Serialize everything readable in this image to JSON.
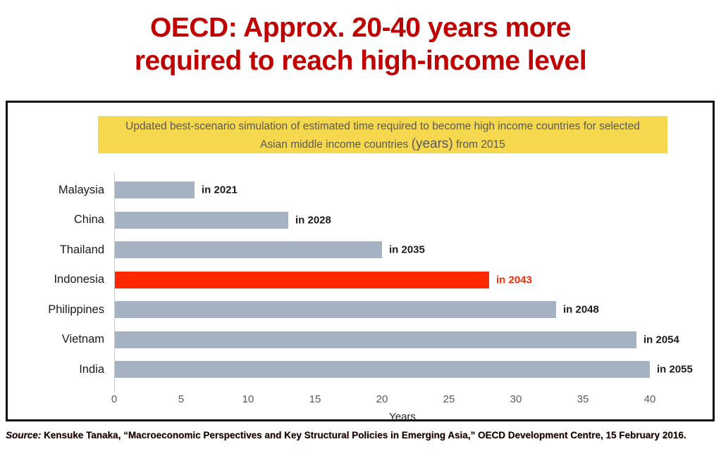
{
  "title": {
    "line1": "OECD: Approx. 20-40 years more",
    "line2": "required to reach high-income level"
  },
  "banner": {
    "line1": "Updated best-scenario simulation of estimated time required to become high income countries for selected",
    "line2_prefix": "Asian middle income countries ",
    "line2_highlight": "(years)",
    "line2_suffix": " from 2015"
  },
  "source": {
    "label": "Source:",
    "text": " Kensuke Tanaka, “Macroeconomic Perspectives and Key Structural Policies in Emerging Asia,” OECD Development Centre, 15 February 2016."
  },
  "colors": {
    "title_red": "#C00000",
    "bar_gray": "#A4B2C2",
    "bar_red": "#FE2900",
    "banner_yellow": "#F6D84F",
    "banner_text": "#595959"
  },
  "chart_data": {
    "type": "bar",
    "orientation": "horizontal",
    "title": "Updated best-scenario simulation of estimated time required to become high income countries for selected Asian middle income countries (years) from 2015",
    "categories": [
      "Malaysia",
      "China",
      "Thailand",
      "Indonesia",
      "Philippines",
      "Vietnam",
      "India"
    ],
    "values": [
      6,
      13,
      20,
      28,
      33,
      39,
      40
    ],
    "bar_labels": [
      "in 2021",
      "in 2028",
      "in 2035",
      "in 2043",
      "in 2048",
      "in 2054",
      "in 2055"
    ],
    "highlight_index": 3,
    "highlight_category": "Indonesia",
    "xlabel": "Years",
    "ylabel": "",
    "xlim": [
      0,
      40
    ],
    "xticks": [
      0,
      5,
      10,
      15,
      20,
      25,
      30,
      35,
      40
    ],
    "grid": false,
    "legend": false
  }
}
